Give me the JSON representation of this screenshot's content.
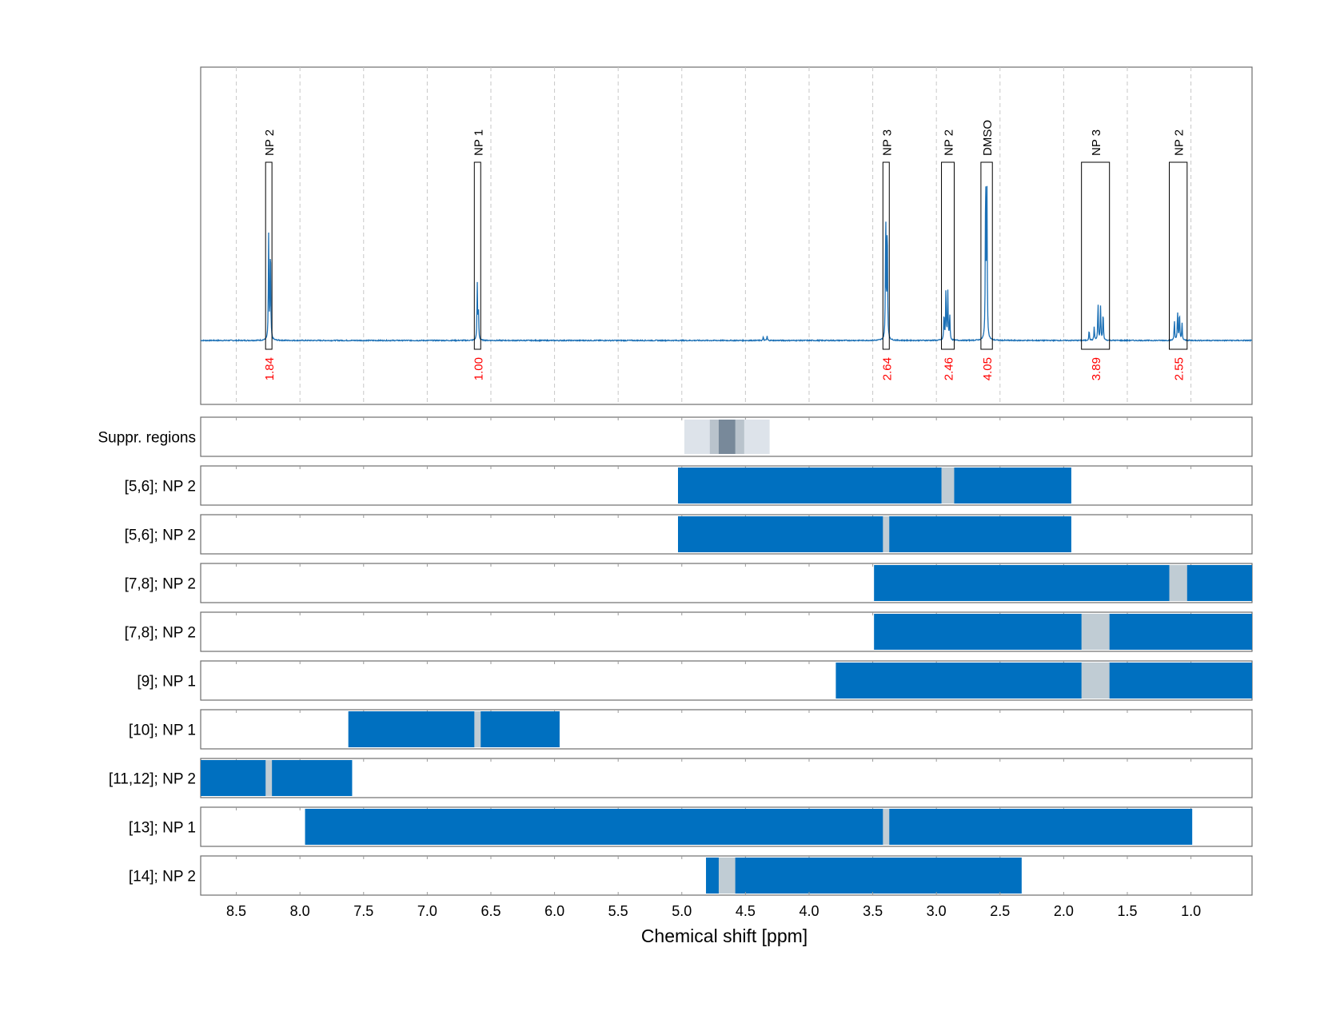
{
  "chart_data": {
    "type": "nmr_spectrum_with_region_tracks",
    "x_axis": {
      "label": "Chemical shift [ppm]",
      "range": [
        8.78,
        0.52
      ],
      "reversed": true,
      "ticks": [
        8.5,
        8.0,
        7.5,
        7.0,
        6.5,
        6.0,
        5.5,
        5.0,
        4.5,
        4.0,
        3.5,
        3.0,
        2.5,
        2.0,
        1.5,
        1.0
      ],
      "tick_labels": [
        "8.5",
        "8.0",
        "7.5",
        "7.0",
        "6.5",
        "6.0",
        "5.5",
        "5.0",
        "4.5",
        "4.0",
        "3.5",
        "3.0",
        "2.5",
        "2.0",
        "1.5",
        "1.0"
      ]
    },
    "grid": "dashed vertical lines at each tick",
    "colors": {
      "spectrum": "#1a6fb5",
      "bar": "#0070c0",
      "gap": "#c0ccd4",
      "integral_label": "#ff0000",
      "suppr_light": "#dde3ea",
      "suppr_mid": "#b9c3cc",
      "suppr_dark": "#78899a"
    },
    "spectrum": {
      "baseline": 0,
      "peaks": [
        {
          "ppm": 8.246,
          "height": 0.61
        },
        {
          "ppm": 8.232,
          "height": 0.58
        },
        {
          "ppm": 6.607,
          "height": 0.33
        },
        {
          "ppm": 6.598,
          "height": 0.17
        },
        {
          "ppm": 4.36,
          "height": 0.02
        },
        {
          "ppm": 4.33,
          "height": 0.025
        },
        {
          "ppm": 3.398,
          "height": 0.76
        },
        {
          "ppm": 3.386,
          "height": 0.72
        },
        {
          "ppm": 2.94,
          "height": 0.16
        },
        {
          "ppm": 2.925,
          "height": 0.3
        },
        {
          "ppm": 2.91,
          "height": 0.28
        },
        {
          "ppm": 2.895,
          "height": 0.15
        },
        {
          "ppm": 2.613,
          "height": 1.0
        },
        {
          "ppm": 2.603,
          "height": 0.9
        },
        {
          "ppm": 1.8,
          "height": 0.06
        },
        {
          "ppm": 1.76,
          "height": 0.08
        },
        {
          "ppm": 1.73,
          "height": 0.22
        },
        {
          "ppm": 1.71,
          "height": 0.2
        },
        {
          "ppm": 1.69,
          "height": 0.17
        },
        {
          "ppm": 1.13,
          "height": 0.12
        },
        {
          "ppm": 1.105,
          "height": 0.17
        },
        {
          "ppm": 1.09,
          "height": 0.17
        },
        {
          "ppm": 1.07,
          "height": 0.1
        }
      ],
      "integration_regions": [
        {
          "label": "NP 2",
          "from": 8.27,
          "to": 8.22,
          "integral": "1.84"
        },
        {
          "label": "NP 1",
          "from": 6.63,
          "to": 6.58,
          "integral": "1.00"
        },
        {
          "label": "NP 3",
          "from": 3.42,
          "to": 3.37,
          "integral": "2.64"
        },
        {
          "label": "NP 2",
          "from": 2.96,
          "to": 2.86,
          "integral": "2.46"
        },
        {
          "label": "DMSO",
          "from": 2.65,
          "to": 2.56,
          "integral": "4.05"
        },
        {
          "label": "NP 3",
          "from": 1.86,
          "to": 1.64,
          "integral": "3.89"
        },
        {
          "label": "NP 2",
          "from": 1.17,
          "to": 1.03,
          "integral": "2.55"
        }
      ]
    },
    "suppression_track": {
      "label": "Suppr. regions",
      "bands": [
        {
          "from": 4.98,
          "to": 4.31,
          "shade": "light"
        },
        {
          "from": 4.78,
          "to": 4.51,
          "shade": "mid"
        },
        {
          "from": 4.71,
          "to": 4.58,
          "shade": "dark"
        }
      ]
    },
    "region_tracks": [
      {
        "label": "[5,6]; NP 2",
        "from": 5.03,
        "to": 1.94,
        "gap": [
          2.96,
          2.86
        ]
      },
      {
        "label": "[5,6]; NP 2",
        "from": 5.03,
        "to": 1.94,
        "gap": [
          3.42,
          3.37
        ]
      },
      {
        "label": "[7,8]; NP 2",
        "from": 3.49,
        "to": 0.52,
        "gap": [
          1.17,
          1.03
        ]
      },
      {
        "label": "[7,8]; NP 2",
        "from": 3.49,
        "to": 0.52,
        "gap": [
          1.86,
          1.64
        ]
      },
      {
        "label": "[9]; NP 1",
        "from": 3.79,
        "to": 0.52,
        "gap": [
          1.86,
          1.64
        ]
      },
      {
        "label": "[10]; NP 1",
        "from": 7.62,
        "to": 5.96,
        "gap": [
          6.63,
          6.58
        ]
      },
      {
        "label": "[11,12]; NP 2",
        "from": 8.78,
        "to": 7.59,
        "gap": [
          8.27,
          8.22
        ]
      },
      {
        "label": "[13]; NP 1",
        "from": 7.96,
        "to": 0.99,
        "gap": [
          3.42,
          3.37
        ]
      },
      {
        "label": "[14]; NP 2",
        "from": 4.81,
        "to": 2.33,
        "gap": [
          4.71,
          4.58
        ]
      }
    ]
  }
}
